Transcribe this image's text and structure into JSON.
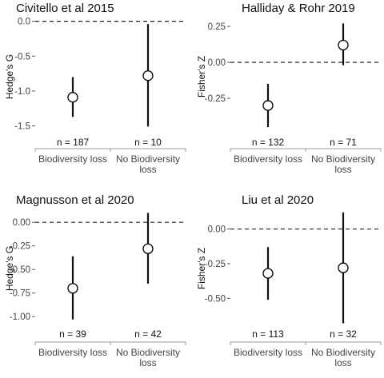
{
  "chart_data": [
    {
      "type": "pointrange",
      "title": "Civitello et al 2015",
      "ylabel": "Hedge's G",
      "xlabel": "",
      "categories": [
        "Biodiversity loss",
        "No Biodiversity loss"
      ],
      "points": [
        {
          "category": "Biodiversity loss",
          "estimate": -1.09,
          "lower": -1.37,
          "upper": -0.8,
          "n_label": "n = 187"
        },
        {
          "category": "No Biodiversity loss",
          "estimate": -0.78,
          "lower": -1.51,
          "upper": -0.04,
          "n_label": "n = 10"
        }
      ],
      "yticks": [
        "0.0",
        "-0.5",
        "-1.0",
        "-1.5"
      ],
      "ytick_values": [
        0.0,
        -0.5,
        -1.0,
        -1.5
      ],
      "ylim": [
        -1.62,
        0.03
      ],
      "reference_line": 0
    },
    {
      "type": "pointrange",
      "title": "Halliday & Rohr 2019",
      "ylabel": "Fisher's Z",
      "xlabel": "",
      "categories": [
        "Biodiversity loss",
        "No Biodiversity loss"
      ],
      "points": [
        {
          "category": "Biodiversity loss",
          "estimate": -0.3,
          "lower": -0.45,
          "upper": -0.15,
          "n_label": "n = 132"
        },
        {
          "category": "No Biodiversity loss",
          "estimate": 0.12,
          "lower": -0.02,
          "upper": 0.27,
          "n_label": "n = 71"
        }
      ],
      "yticks": [
        "0.25",
        "0.00",
        "-0.25"
      ],
      "ytick_values": [
        0.25,
        0.0,
        -0.25
      ],
      "ylim": [
        -0.5,
        0.3
      ],
      "reference_line": 0
    },
    {
      "type": "pointrange",
      "title": "Magnusson et al 2020",
      "ylabel": "Hedge's G",
      "xlabel": "",
      "categories": [
        "Biodiversity loss",
        "No Biodiversity loss"
      ],
      "points": [
        {
          "category": "Biodiversity loss",
          "estimate": -0.7,
          "lower": -1.03,
          "upper": -0.36,
          "n_label": "n = 39"
        },
        {
          "category": "No Biodiversity loss",
          "estimate": -0.28,
          "lower": -0.65,
          "upper": 0.1,
          "n_label": "n = 42"
        }
      ],
      "yticks": [
        "0.00",
        "-0.25",
        "-0.50",
        "-0.75",
        "-1.00"
      ],
      "ytick_values": [
        0.0,
        -0.25,
        -0.5,
        -0.75,
        -1.0
      ],
      "ylim": [
        -1.1,
        0.12
      ],
      "reference_line": 0
    },
    {
      "type": "pointrange",
      "title": "Liu et al 2020",
      "ylabel": "Fisher's Z",
      "xlabel": "",
      "categories": [
        "Biodiversity loss",
        "No Biodiversity loss"
      ],
      "points": [
        {
          "category": "Biodiversity loss",
          "estimate": -0.32,
          "lower": -0.51,
          "upper": -0.13,
          "n_label": "n = 113"
        },
        {
          "category": "No Biodiversity loss",
          "estimate": -0.28,
          "lower": -0.68,
          "upper": 0.12,
          "n_label": "n = 32"
        }
      ],
      "yticks": [
        "0.00",
        "-0.25",
        "-0.50"
      ],
      "ytick_values": [
        0.0,
        -0.25,
        -0.5
      ],
      "ylim": [
        -0.7,
        0.13
      ],
      "reference_line": 0
    }
  ]
}
